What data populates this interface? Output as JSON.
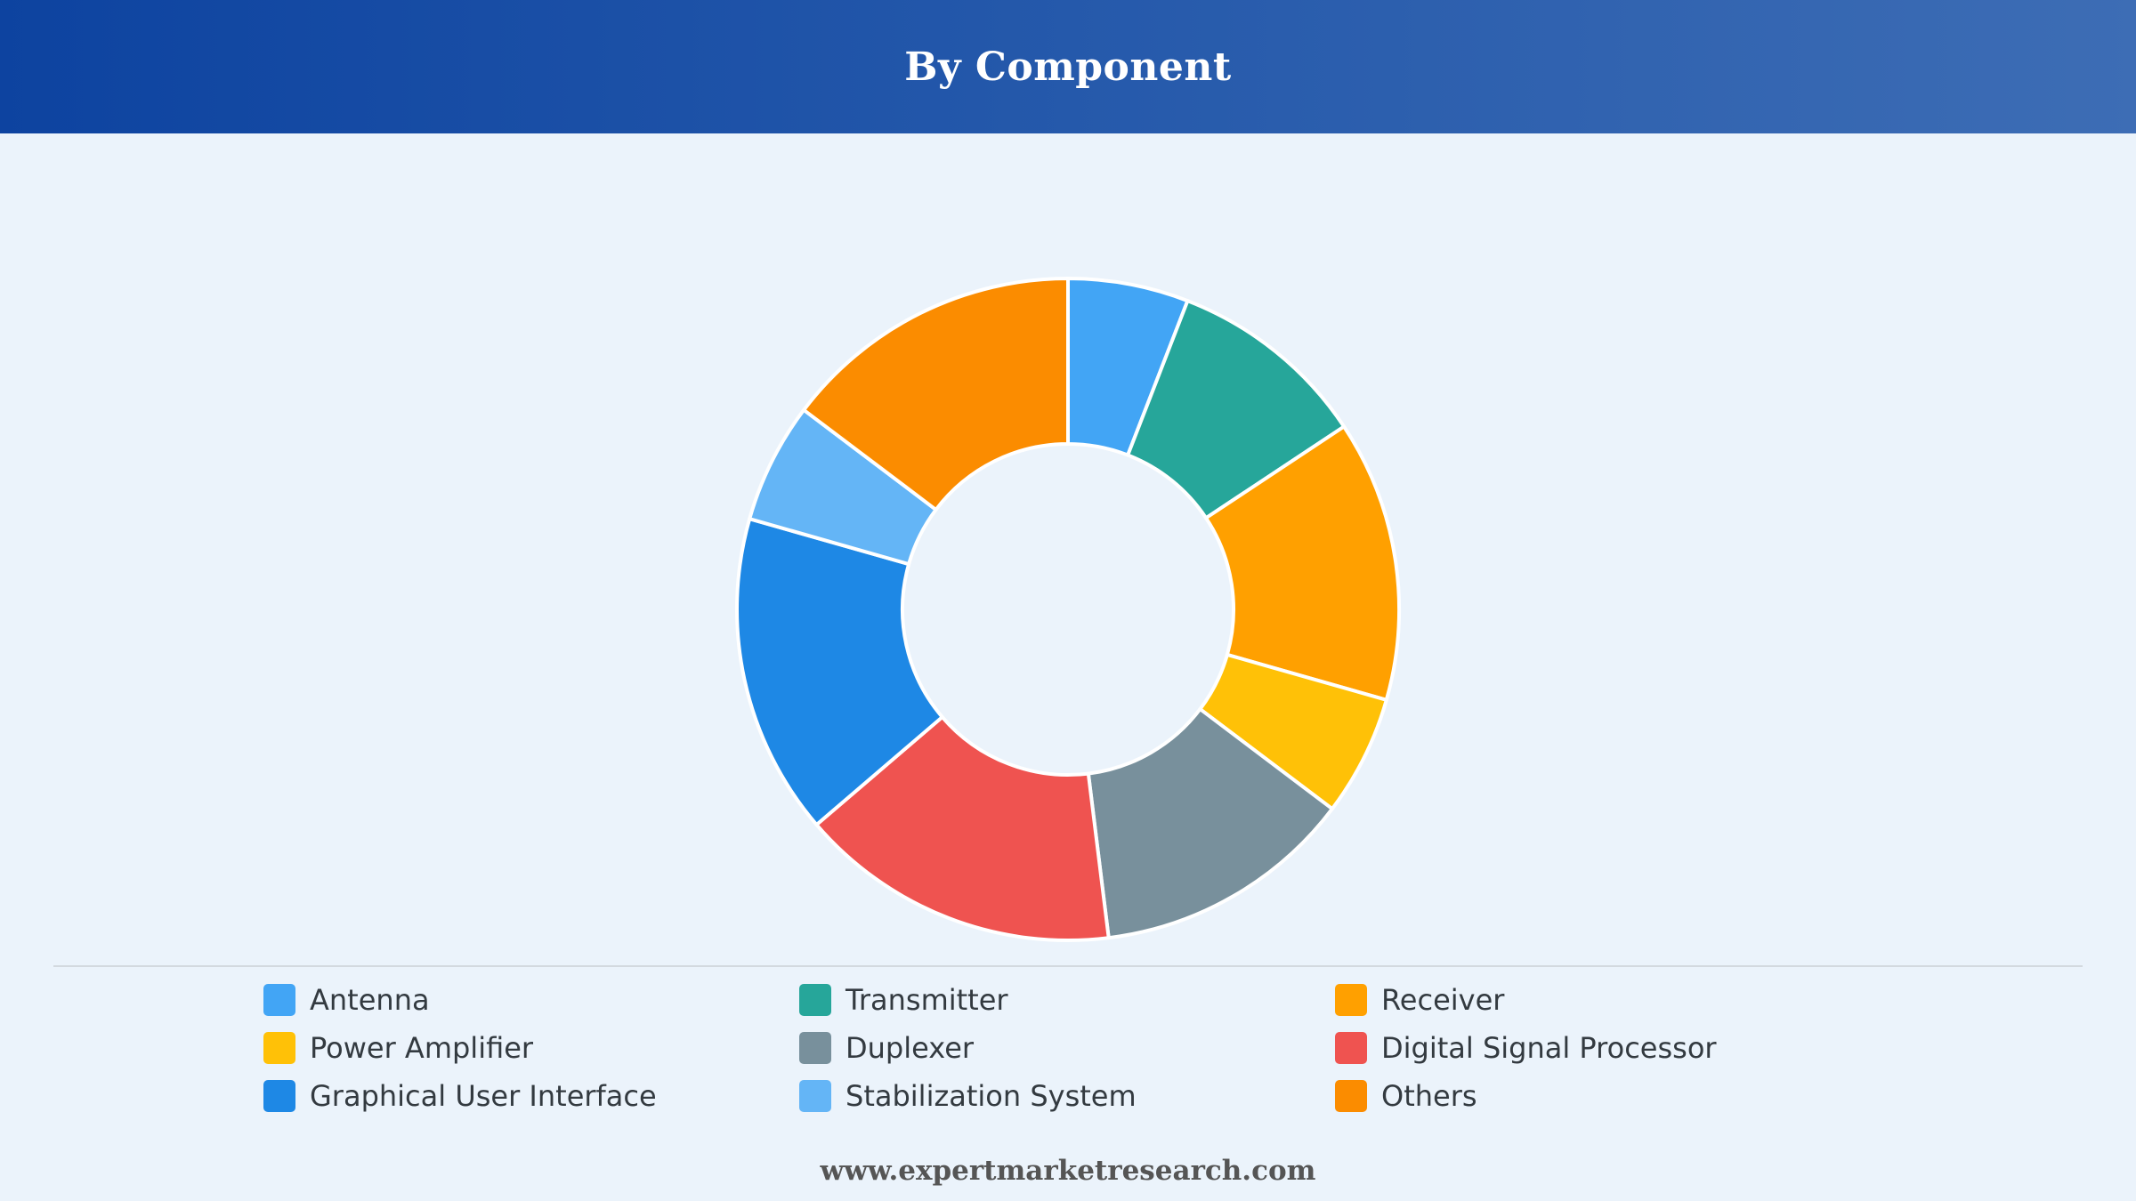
{
  "header": {
    "title": "By Component"
  },
  "footer": {
    "website": "www.expertmarketresearch.com"
  },
  "chart_data": {
    "type": "pie",
    "donut": true,
    "title": "By Component",
    "legend_position": "bottom",
    "categories": [
      "Antenna",
      "Transmitter",
      "Receiver",
      "Power Amplifier",
      "Duplexer",
      "Digital Signal Processor",
      "Graphical User Interface",
      "Stabilization System",
      "Others"
    ],
    "values": [
      6,
      10,
      14,
      6,
      13,
      16,
      16,
      6,
      15
    ],
    "colors": [
      "#42a5f5",
      "#26a69a",
      "#ffa000",
      "#ffc107",
      "#78909c",
      "#ef5350",
      "#1e88e5",
      "#64b5f6",
      "#fb8c00"
    ]
  }
}
